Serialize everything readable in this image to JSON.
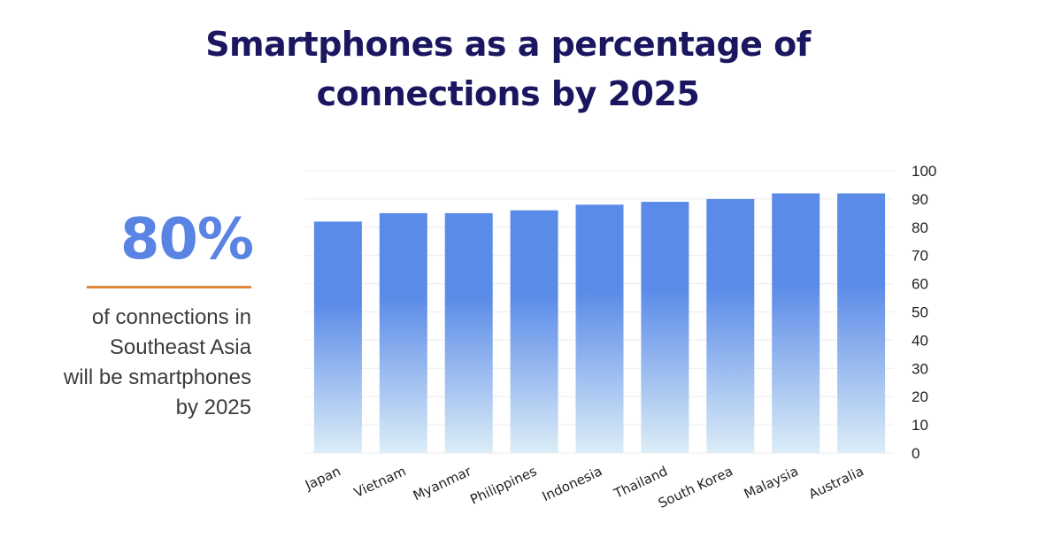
{
  "title": {
    "line1": "Smartphones as a percentage of",
    "line2": "connections by 2025"
  },
  "stat": {
    "value": "80%",
    "caption_lines": [
      "of connections in",
      "Southeast Asia",
      "will be smartphones",
      "by 2025"
    ]
  },
  "colors": {
    "title": "#1a1660",
    "bar_top": "#5b8be8",
    "bar_bottom": "#dcedf7",
    "stat_value": "#5a84e4",
    "rule": "#e0883a"
  },
  "chart_data": {
    "type": "bar",
    "categories": [
      "Japan",
      "Vietnam",
      "Myanmar",
      "Philippines",
      "Indonesia",
      "Thailand",
      "South Korea",
      "Malaysia",
      "Australia"
    ],
    "values": [
      82,
      85,
      85,
      86,
      88,
      89,
      90,
      92,
      92
    ],
    "yticks": [
      0,
      10,
      20,
      30,
      40,
      50,
      60,
      70,
      80,
      90,
      100
    ],
    "ylim": [
      0,
      100
    ],
    "y_axis_position": "right",
    "grid": true
  }
}
